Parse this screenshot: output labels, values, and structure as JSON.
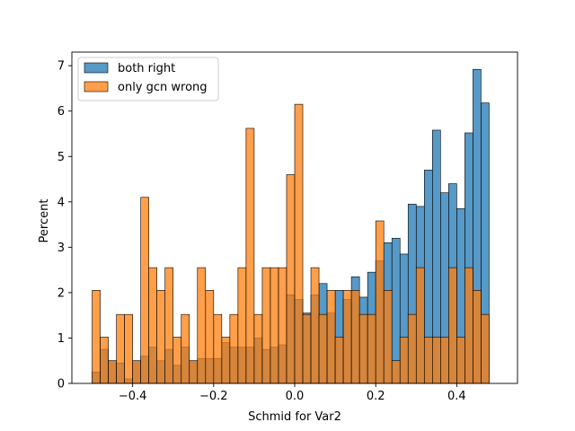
{
  "chart_data": {
    "type": "histogram",
    "xlabel": "Schmid for Var2",
    "ylabel": "Percent",
    "xlim": [
      -0.55,
      0.55
    ],
    "ylim": [
      0,
      7.3
    ],
    "bin_start": -0.5,
    "bin_width": 0.02,
    "xticks": [
      -0.4,
      -0.2,
      0.0,
      0.2,
      0.4
    ],
    "xtick_labels": [
      "−0.4",
      "−0.2",
      "0.0",
      "0.2",
      "0.4"
    ],
    "yticks": [
      0,
      1,
      2,
      3,
      4,
      5,
      6,
      7
    ],
    "ytick_labels": [
      "0",
      "1",
      "2",
      "3",
      "4",
      "5",
      "6",
      "7"
    ],
    "legend_position": "upper-left",
    "series": [
      {
        "name": "both right",
        "color": "#1f77b4",
        "values": [
          0.25,
          0.75,
          0.5,
          0.45,
          0.1,
          0.5,
          0.6,
          0.8,
          0.5,
          0.75,
          0.4,
          0.8,
          0.5,
          0.55,
          0.55,
          0.55,
          0.9,
          0.8,
          0.8,
          0.8,
          1.0,
          0.75,
          0.8,
          0.85,
          1.95,
          1.85,
          1.55,
          1.95,
          2.2,
          1.55,
          2.05,
          1.85,
          2.35,
          1.9,
          2.45,
          2.7,
          3.1,
          3.2,
          2.85,
          3.95,
          3.9,
          4.7,
          5.58,
          4.2,
          4.4,
          3.85,
          5.52,
          6.92,
          6.18
        ]
      },
      {
        "name": "only gcn wrong",
        "color": "#ff7f0e",
        "values": [
          2.05,
          1.02,
          0.5,
          1.52,
          1.52,
          0.5,
          4.1,
          2.55,
          2.05,
          2.55,
          1.02,
          1.52,
          0.5,
          2.55,
          2.05,
          1.52,
          1.02,
          1.52,
          2.55,
          5.62,
          1.52,
          2.55,
          2.55,
          2.55,
          4.6,
          6.15,
          1.52,
          2.55,
          1.52,
          2.05,
          1.02,
          2.05,
          2.05,
          1.52,
          1.52,
          3.58,
          2.05,
          0.5,
          1.02,
          1.52,
          2.55,
          1.02,
          1.02,
          1.02,
          2.55,
          1.02,
          2.55,
          2.05,
          1.52
        ]
      }
    ]
  }
}
